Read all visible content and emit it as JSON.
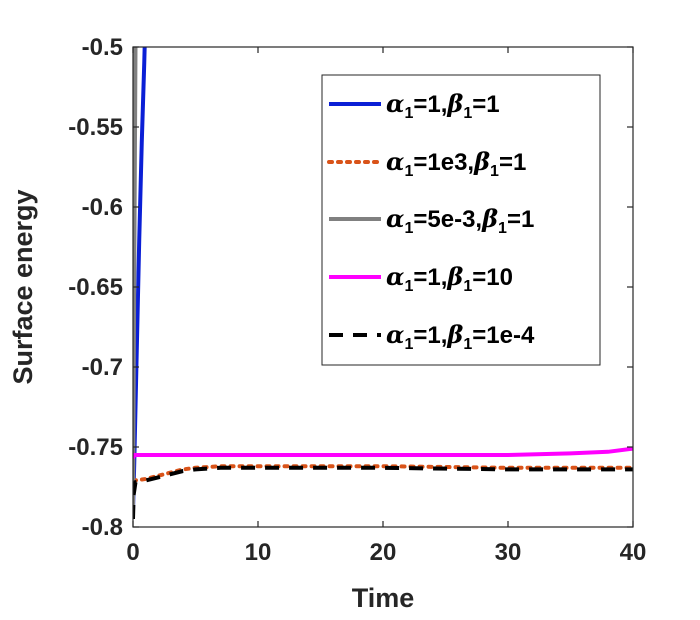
{
  "chart_data": {
    "type": "line",
    "title": "",
    "xlabel": "Time",
    "ylabel": "Surface energy",
    "xlim": [
      0,
      40
    ],
    "ylim": [
      -0.8,
      -0.5
    ],
    "xticks": [
      0,
      10,
      20,
      30,
      40
    ],
    "xtick_labels": [
      "0",
      "10",
      "20",
      "30",
      "40"
    ],
    "yticks": [
      -0.8,
      -0.75,
      -0.7,
      -0.65,
      -0.6,
      -0.55,
      -0.5
    ],
    "ytick_labels": [
      "-0.8",
      "-0.75",
      "-0.7",
      "-0.65",
      "-0.6",
      "-0.55",
      "-0.5"
    ],
    "grid": false,
    "legend_position": "top-right",
    "series": [
      {
        "legend": {
          "a": "α",
          "s1": "1",
          "t1": "=1,",
          "b": "β",
          "s2": "1",
          "t2": "=1"
        },
        "color": "#0a1fd6",
        "dash": "solid",
        "points": [
          [
            0,
            -0.79
          ],
          [
            0.1,
            -0.76
          ],
          [
            0.3,
            -0.69
          ],
          [
            0.5,
            -0.62
          ],
          [
            0.7,
            -0.56
          ],
          [
            0.9,
            -0.51
          ],
          [
            1.0,
            -0.48
          ]
        ]
      },
      {
        "legend": {
          "a": "α",
          "s1": "1",
          "t1": "=1e3,",
          "b": "β",
          "s2": "1",
          "t2": "=1"
        },
        "color": "#d95319",
        "dash": "dot",
        "points": [
          [
            0,
            -0.771
          ],
          [
            1,
            -0.77
          ],
          [
            2,
            -0.768
          ],
          [
            3,
            -0.766
          ],
          [
            4,
            -0.764
          ],
          [
            5,
            -0.763
          ],
          [
            7,
            -0.762
          ],
          [
            10,
            -0.762
          ],
          [
            15,
            -0.762
          ],
          [
            20,
            -0.762
          ],
          [
            30,
            -0.763
          ],
          [
            40,
            -0.763
          ]
        ]
      },
      {
        "legend": {
          "a": "α",
          "s1": "1",
          "t1": "=5e-3,",
          "b": "β",
          "s2": "1",
          "t2": "=1"
        },
        "color": "#808080",
        "dash": "solid",
        "points": [
          [
            0,
            -0.79
          ],
          [
            0.05,
            -0.72
          ],
          [
            0.1,
            -0.64
          ],
          [
            0.15,
            -0.57
          ],
          [
            0.2,
            -0.5
          ]
        ]
      },
      {
        "legend": {
          "a": "α",
          "s1": "1",
          "t1": "=1,",
          "b": "β",
          "s2": "1",
          "t2": "=10"
        },
        "color": "#ff00ff",
        "dash": "solid",
        "points": [
          [
            0,
            -0.757
          ],
          [
            0.1,
            -0.755
          ],
          [
            2,
            -0.755
          ],
          [
            10,
            -0.755
          ],
          [
            20,
            -0.755
          ],
          [
            30,
            -0.755
          ],
          [
            35,
            -0.754
          ],
          [
            38,
            -0.753
          ],
          [
            40,
            -0.751
          ]
        ]
      },
      {
        "legend": {
          "a": "α",
          "s1": "1",
          "t1": "=1,",
          "b": "β",
          "s2": "1",
          "t2": "=1e-4"
        },
        "color": "#000000",
        "dash": "dash",
        "points": [
          [
            0,
            -0.795
          ],
          [
            0.05,
            -0.78
          ],
          [
            0.2,
            -0.772
          ],
          [
            1,
            -0.771
          ],
          [
            2,
            -0.769
          ],
          [
            3,
            -0.767
          ],
          [
            4,
            -0.765
          ],
          [
            5,
            -0.764
          ],
          [
            7,
            -0.763
          ],
          [
            10,
            -0.763
          ],
          [
            20,
            -0.763
          ],
          [
            30,
            -0.764
          ],
          [
            40,
            -0.764
          ]
        ]
      }
    ]
  }
}
